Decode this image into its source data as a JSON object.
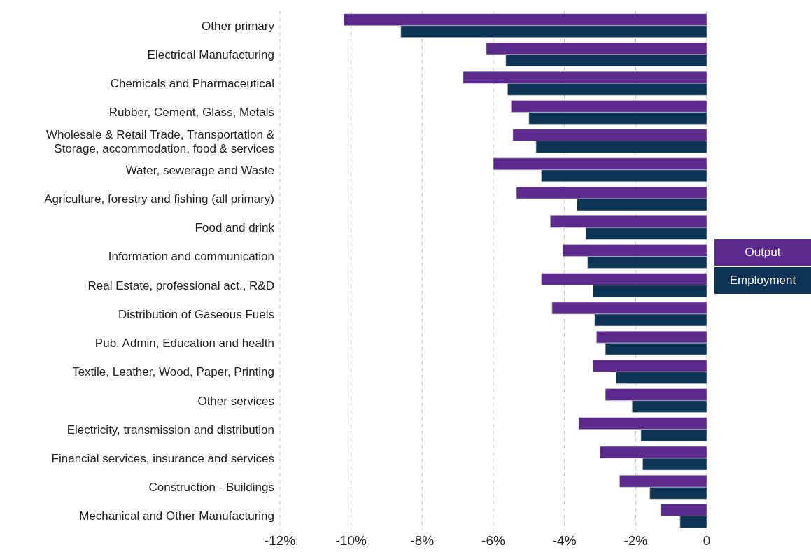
{
  "chart_data": {
    "type": "bar",
    "orientation": "horizontal",
    "categories": [
      "Other primary",
      "Electrical Manufacturing",
      "Chemicals and Pharmaceutical",
      "Rubber, Cement, Glass, Metals",
      "Wholesale & Retail Trade, Transportation & Storage, accommodation, food & services",
      "Water, sewerage and Waste",
      "Agriculture, forestry and fishing (all primary)",
      "Food and drink",
      "Information and communication",
      "Real Estate, professional act., R&D",
      "Distribution of Gaseous Fuels",
      "Pub. Admin, Education and health",
      "Textile, Leather, Wood, Paper, Printing",
      "Other services",
      "Electricity, transmission and distribution",
      "Financial services, insurance and services",
      "Construction - Buildings",
      "Mechanical and Other Manufacturing"
    ],
    "series": [
      {
        "name": "Output",
        "color": "#5b2a8c",
        "values": [
          -10.2,
          -6.2,
          -6.85,
          -5.5,
          -5.45,
          -6.0,
          -5.35,
          -4.4,
          -4.05,
          -4.65,
          -4.35,
          -3.1,
          -3.2,
          -2.85,
          -3.6,
          -3.0,
          -2.45,
          -1.3
        ]
      },
      {
        "name": "Employment",
        "color": "#0d3455",
        "values": [
          -8.6,
          -5.65,
          -5.6,
          -5.0,
          -4.8,
          -4.65,
          -3.65,
          -3.4,
          -3.35,
          -3.2,
          -3.15,
          -2.85,
          -2.55,
          -2.1,
          -1.85,
          -1.8,
          -1.6,
          -0.75
        ]
      }
    ],
    "xlim": [
      -12,
      0
    ],
    "xticks": [
      {
        "value": -12,
        "label": "-12%"
      },
      {
        "value": -10,
        "label": "-10%"
      },
      {
        "value": -8,
        "label": "-8%"
      },
      {
        "value": -6,
        "label": "-6%"
      },
      {
        "value": -4,
        "label": "-4%"
      },
      {
        "value": -2,
        "label": "-2%"
      },
      0
    ],
    "grid": "x",
    "legend": "right"
  }
}
